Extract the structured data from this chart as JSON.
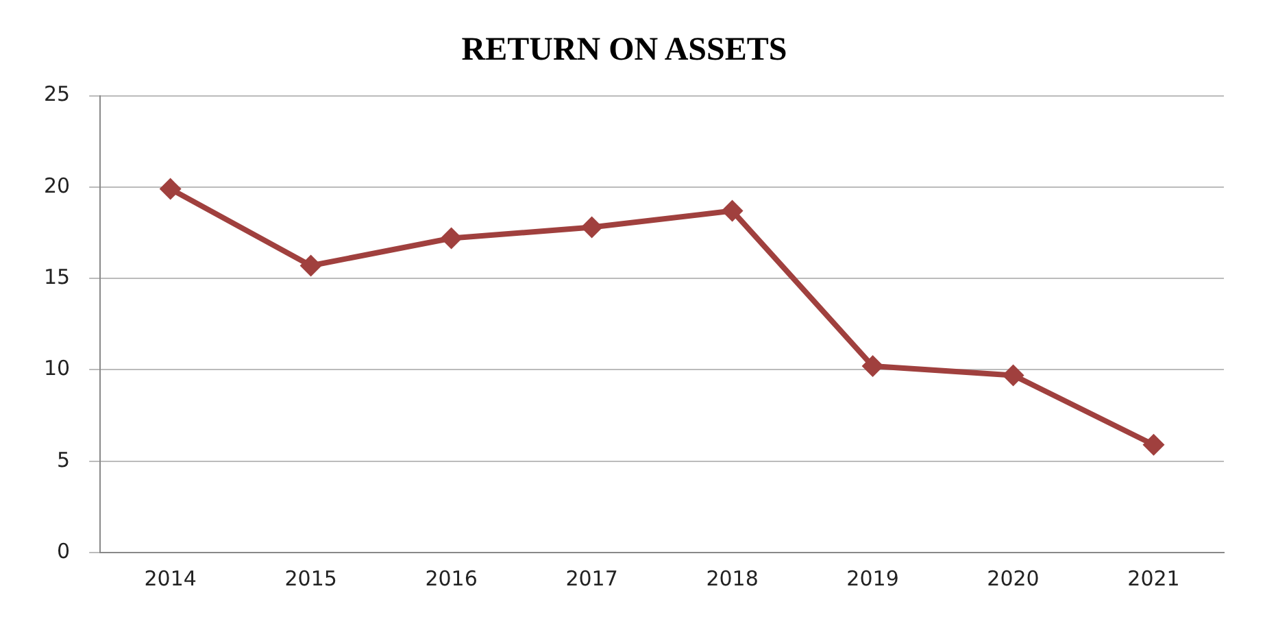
{
  "chart_data": {
    "type": "line",
    "title": "RETURN ON ASSETS",
    "categories": [
      "2014",
      "2015",
      "2016",
      "2017",
      "2018",
      "2019",
      "2020",
      "2021"
    ],
    "series": [
      {
        "color": "#a0403e",
        "values": [
          19.9,
          15.7,
          17.2,
          17.8,
          18.7,
          10.2,
          9.7,
          5.9
        ]
      }
    ],
    "ylim": [
      0,
      25
    ],
    "yticks": [
      0,
      5,
      10,
      15,
      20,
      25
    ],
    "grid": "y",
    "marker": "diamond",
    "line_style": "solid",
    "legend": false
  }
}
